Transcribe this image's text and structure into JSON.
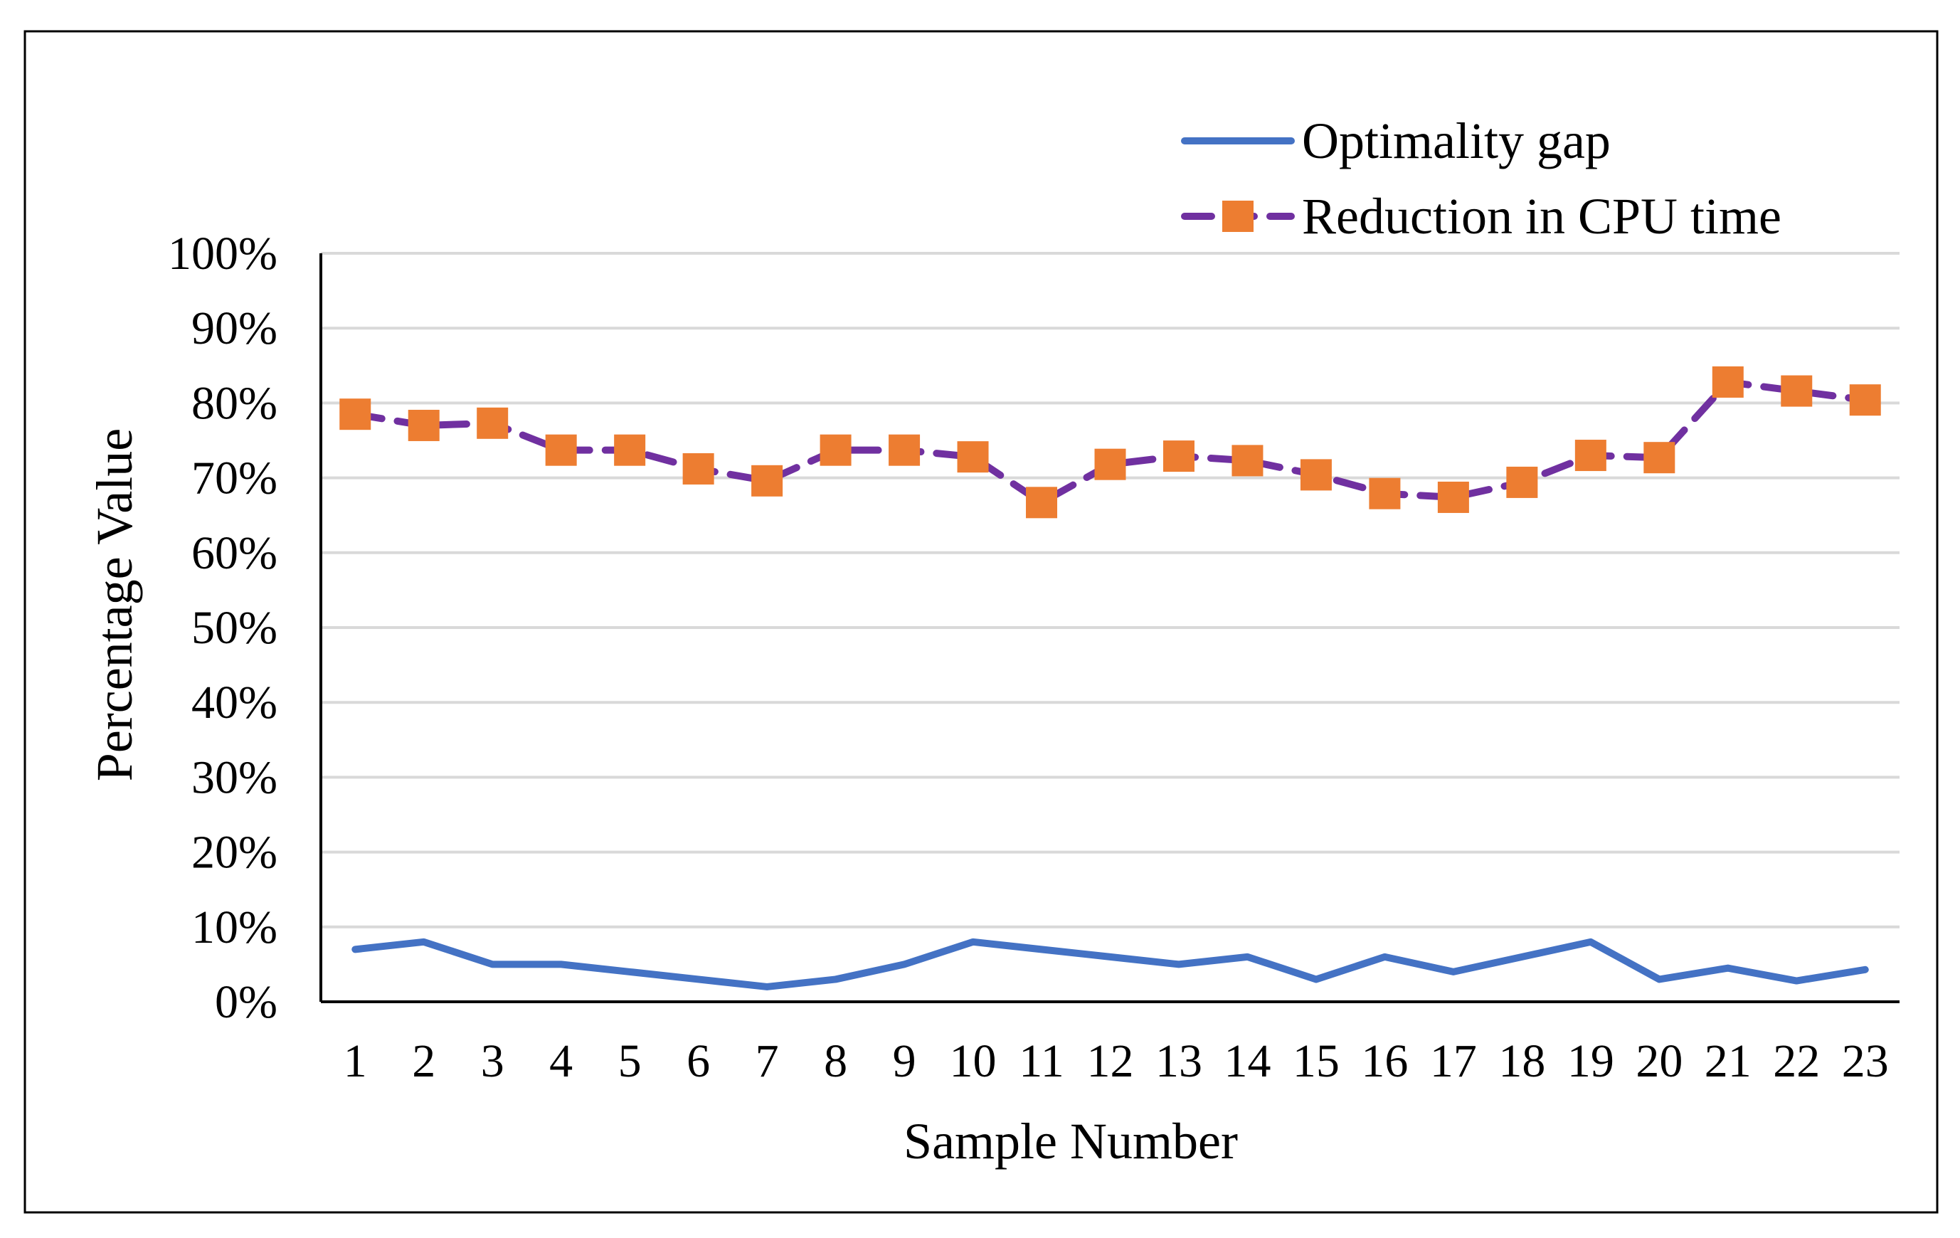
{
  "chart_data": {
    "type": "line",
    "title": "",
    "xlabel": "Sample Number",
    "ylabel": "Percentage Value",
    "categories": [
      "1",
      "2",
      "3",
      "4",
      "5",
      "6",
      "7",
      "8",
      "9",
      "10",
      "11",
      "12",
      "13",
      "14",
      "15",
      "16",
      "17",
      "18",
      "19",
      "20",
      "21",
      "22",
      "23"
    ],
    "ylim": [
      0,
      100
    ],
    "yticks": [
      "0%",
      "10%",
      "20%",
      "30%",
      "40%",
      "50%",
      "60%",
      "70%",
      "80%",
      "90%",
      "100%"
    ],
    "grid": "horizontal",
    "legend_position": "top-right",
    "series": [
      {
        "name": "Optimality gap",
        "color": "#4472C4",
        "style": "solid",
        "marker": "none",
        "values": [
          7,
          8,
          5,
          5,
          4,
          3,
          2,
          3,
          5,
          8,
          7,
          6,
          5,
          6,
          3,
          6,
          4,
          6,
          8,
          3,
          4.5,
          2.8,
          4.3
        ]
      },
      {
        "name": "Reduction in CPU time",
        "color": "#7030A0",
        "marker_color": "#ED7D31",
        "style": "dashed",
        "marker": "square",
        "values": [
          78.5,
          77,
          77.3,
          73.7,
          73.7,
          71.2,
          69.6,
          73.7,
          73.7,
          72.8,
          66.7,
          71.8,
          72.9,
          72.3,
          70.4,
          67.9,
          67.4,
          69.4,
          73,
          72.7,
          82.8,
          81.6,
          80.4
        ]
      }
    ]
  }
}
